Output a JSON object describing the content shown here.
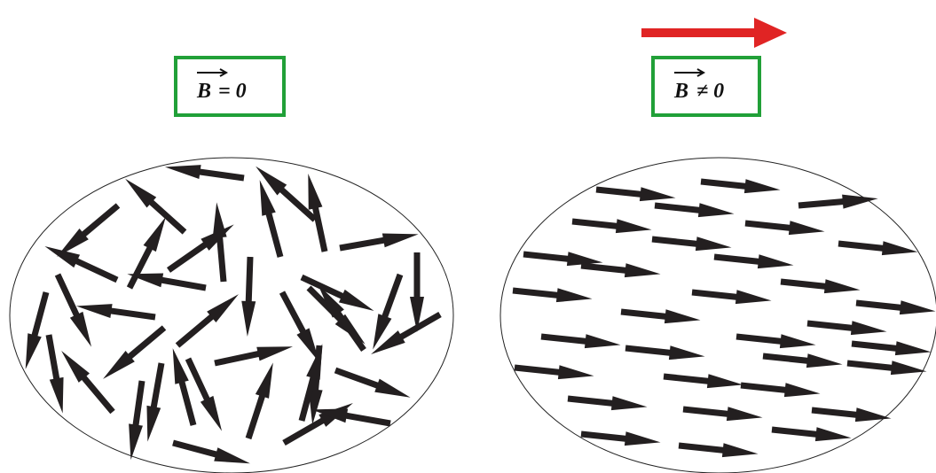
{
  "labels": [
    {
      "vector": "B",
      "relation": "= 0"
    },
    {
      "vector": "B",
      "relation": "≠ 0"
    }
  ]
}
